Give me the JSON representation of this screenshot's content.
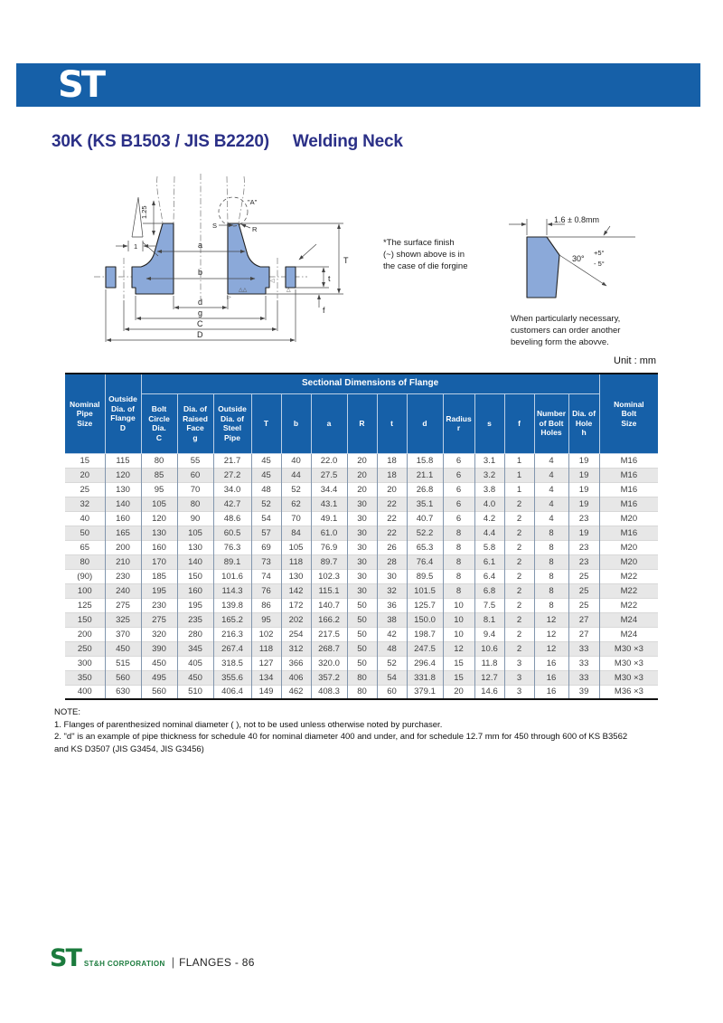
{
  "colors": {
    "primary_blue": "#1660a8",
    "title_navy": "#2b3087",
    "drawing_fill": "#8ba9d9",
    "footer_green": "#1b7b3d",
    "row_stripe": "#e7e7e7"
  },
  "header": {
    "logo": "ST",
    "title_main": "30K (KS B1503 / JIS B2220)",
    "title_sub": "Welding Neck"
  },
  "diagram": {
    "labels": {
      "l125": "1.25",
      "l1": "1",
      "a_detail": "\"A\"",
      "s": "S",
      "r": "R",
      "a": "a",
      "b": "b",
      "d": "d",
      "g": "g",
      "c": "C",
      "dd": "D",
      "T": "T",
      "t": "t",
      "f": "f"
    },
    "bevel": {
      "dim": "1.6 ± 0.8mm",
      "angle": "30°",
      "plus": "+5°",
      "minus": "- 5°"
    },
    "surface_note": "*The surface finish\n(~) shown above is in\nthe case of die forgine",
    "bevel_note": "When particularly necessary,\ncustomers can order another\nbeveling form the abovve.",
    "unit": "Unit : mm"
  },
  "table": {
    "group_header": "Sectional Dimensions of Flange",
    "columns": [
      "Nominal\nPipe\nSize",
      "Outside\nDia. of\nFlange\nD",
      "Bolt\nCircle\nDia.\nC",
      "Dia. of\nRaised\nFace\ng",
      "Outside\nDia. of\nSteel\nPipe",
      "T",
      "b",
      "a",
      "R",
      "t",
      "d",
      "Radius\nr",
      "s",
      "f",
      "Number\nof Bolt\nHoles",
      "Dia. of\nHole\nh",
      "Nominal\nBolt\nSize"
    ],
    "rows": [
      [
        "15",
        "115",
        "80",
        "55",
        "21.7",
        "45",
        "40",
        "22.0",
        "20",
        "18",
        "15.8",
        "6",
        "3.1",
        "1",
        "4",
        "19",
        "M16"
      ],
      [
        "20",
        "120",
        "85",
        "60",
        "27.2",
        "45",
        "44",
        "27.5",
        "20",
        "18",
        "21.1",
        "6",
        "3.2",
        "1",
        "4",
        "19",
        "M16"
      ],
      [
        "25",
        "130",
        "95",
        "70",
        "34.0",
        "48",
        "52",
        "34.4",
        "20",
        "20",
        "26.8",
        "6",
        "3.8",
        "1",
        "4",
        "19",
        "M16"
      ],
      [
        "32",
        "140",
        "105",
        "80",
        "42.7",
        "52",
        "62",
        "43.1",
        "30",
        "22",
        "35.1",
        "6",
        "4.0",
        "2",
        "4",
        "19",
        "M16"
      ],
      [
        "40",
        "160",
        "120",
        "90",
        "48.6",
        "54",
        "70",
        "49.1",
        "30",
        "22",
        "40.7",
        "6",
        "4.2",
        "2",
        "4",
        "23",
        "M20"
      ],
      [
        "50",
        "165",
        "130",
        "105",
        "60.5",
        "57",
        "84",
        "61.0",
        "30",
        "22",
        "52.2",
        "8",
        "4.4",
        "2",
        "8",
        "19",
        "M16"
      ],
      [
        "65",
        "200",
        "160",
        "130",
        "76.3",
        "69",
        "105",
        "76.9",
        "30",
        "26",
        "65.3",
        "8",
        "5.8",
        "2",
        "8",
        "23",
        "M20"
      ],
      [
        "80",
        "210",
        "170",
        "140",
        "89.1",
        "73",
        "118",
        "89.7",
        "30",
        "28",
        "76.4",
        "8",
        "6.1",
        "2",
        "8",
        "23",
        "M20"
      ],
      [
        "(90)",
        "230",
        "185",
        "150",
        "101.6",
        "74",
        "130",
        "102.3",
        "30",
        "30",
        "89.5",
        "8",
        "6.4",
        "2",
        "8",
        "25",
        "M22"
      ],
      [
        "100",
        "240",
        "195",
        "160",
        "114.3",
        "76",
        "142",
        "115.1",
        "30",
        "32",
        "101.5",
        "8",
        "6.8",
        "2",
        "8",
        "25",
        "M22"
      ],
      [
        "125",
        "275",
        "230",
        "195",
        "139.8",
        "86",
        "172",
        "140.7",
        "50",
        "36",
        "125.7",
        "10",
        "7.5",
        "2",
        "8",
        "25",
        "M22"
      ],
      [
        "150",
        "325",
        "275",
        "235",
        "165.2",
        "95",
        "202",
        "166.2",
        "50",
        "38",
        "150.0",
        "10",
        "8.1",
        "2",
        "12",
        "27",
        "M24"
      ],
      [
        "200",
        "370",
        "320",
        "280",
        "216.3",
        "102",
        "254",
        "217.5",
        "50",
        "42",
        "198.7",
        "10",
        "9.4",
        "2",
        "12",
        "27",
        "M24"
      ],
      [
        "250",
        "450",
        "390",
        "345",
        "267.4",
        "118",
        "312",
        "268.7",
        "50",
        "48",
        "247.5",
        "12",
        "10.6",
        "2",
        "12",
        "33",
        "M30 ×3"
      ],
      [
        "300",
        "515",
        "450",
        "405",
        "318.5",
        "127",
        "366",
        "320.0",
        "50",
        "52",
        "296.4",
        "15",
        "11.8",
        "3",
        "16",
        "33",
        "M30 ×3"
      ],
      [
        "350",
        "560",
        "495",
        "450",
        "355.6",
        "134",
        "406",
        "357.2",
        "80",
        "54",
        "331.8",
        "15",
        "12.7",
        "3",
        "16",
        "33",
        "M30 ×3"
      ],
      [
        "400",
        "630",
        "560",
        "510",
        "406.4",
        "149",
        "462",
        "408.3",
        "80",
        "60",
        "379.1",
        "20",
        "14.6",
        "3",
        "16",
        "39",
        "M36 ×3"
      ]
    ]
  },
  "note": {
    "text": "NOTE:\n1. Flanges of parenthesized nominal diameter (   ), not to be used unless otherwise noted by purchaser.\n2. \"d\" is an example of pipe thickness for schedule 40 for nominal diameter 400 and under, and for schedule  12.7 mm for 450 through 600 of KS B3562\n    and KS D3507 (JIS G3454, JIS G3456)"
  },
  "footer": {
    "logo": "ST",
    "company": "ST&H CORPORATION",
    "divider": "|",
    "page": "FLANGES - 86"
  }
}
